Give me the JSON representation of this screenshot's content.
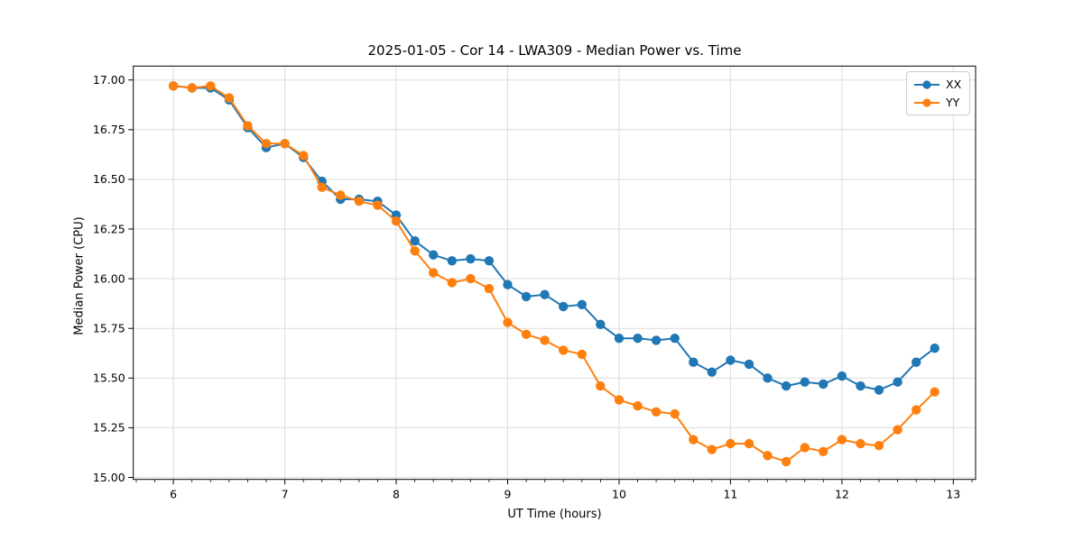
{
  "chart_data": {
    "type": "line",
    "title": "2025-01-05 - Cor 14 - LWA309 - Median Power vs. Time",
    "xlabel": "UT Time (hours)",
    "ylabel": "Median Power (CPU)",
    "xlim": [
      5.64,
      13.2
    ],
    "ylim": [
      14.99,
      17.07
    ],
    "x_ticks": [
      6,
      7,
      8,
      9,
      10,
      11,
      12,
      13
    ],
    "x_minor_tick_step_hours": 0.1667,
    "y_ticks": [
      15.0,
      15.25,
      15.5,
      15.75,
      16.0,
      16.25,
      16.5,
      16.75,
      17.0
    ],
    "grid": true,
    "grid_color": "#dcdcdc",
    "legend_position": "upper right",
    "x": [
      6.0,
      6.167,
      6.333,
      6.5,
      6.667,
      6.833,
      7.0,
      7.167,
      7.333,
      7.5,
      7.667,
      7.833,
      8.0,
      8.167,
      8.333,
      8.5,
      8.667,
      8.833,
      9.0,
      9.167,
      9.333,
      9.5,
      9.667,
      9.833,
      10.0,
      10.167,
      10.333,
      10.5,
      10.667,
      10.833,
      11.0,
      11.167,
      11.333,
      11.5,
      11.667,
      11.833,
      12.0,
      12.167,
      12.333,
      12.5,
      12.667,
      12.833
    ],
    "series": [
      {
        "name": "XX",
        "color": "#1f77b4",
        "marker": "circle",
        "values": [
          16.97,
          16.96,
          16.96,
          16.9,
          16.76,
          16.66,
          16.68,
          16.61,
          16.49,
          16.4,
          16.4,
          16.39,
          16.32,
          16.19,
          16.12,
          16.09,
          16.1,
          16.09,
          15.97,
          15.91,
          15.92,
          15.86,
          15.87,
          15.77,
          15.7,
          15.7,
          15.69,
          15.7,
          15.58,
          15.53,
          15.59,
          15.57,
          15.5,
          15.46,
          15.48,
          15.47,
          15.51,
          15.46,
          15.44,
          15.48,
          15.58,
          15.65
        ]
      },
      {
        "name": "YY",
        "color": "#ff7f0e",
        "marker": "circle",
        "values": [
          16.97,
          16.96,
          16.97,
          16.91,
          16.77,
          16.68,
          16.68,
          16.62,
          16.46,
          16.42,
          16.39,
          16.37,
          16.29,
          16.14,
          16.03,
          15.98,
          16.0,
          15.95,
          15.78,
          15.72,
          15.69,
          15.64,
          15.62,
          15.46,
          15.39,
          15.36,
          15.33,
          15.32,
          15.19,
          15.14,
          15.17,
          15.17,
          15.11,
          15.08,
          15.15,
          15.13,
          15.19,
          15.17,
          15.16,
          15.24,
          15.34,
          15.43
        ]
      }
    ]
  }
}
